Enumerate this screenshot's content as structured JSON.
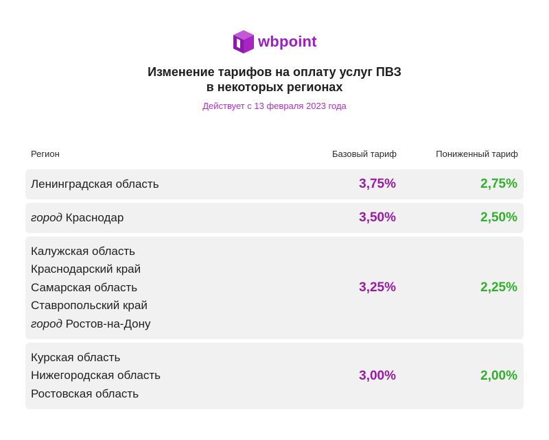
{
  "brand": {
    "name": "wbpoint",
    "color": "#9b1fbf"
  },
  "title_line1": "Изменение тарифов на оплату услуг ПВЗ",
  "title_line2": "в некоторых регионах",
  "subtitle": "Действует с 13 февраля 2023 года",
  "columns": {
    "region": "Регион",
    "base": "Базовый тариф",
    "reduced": "Пониженный тариф"
  },
  "colors": {
    "base_value": "#981da3",
    "reduced_value": "#2fb12a",
    "row_bg": "#f1f1f1"
  },
  "rows": [
    {
      "regions": [
        {
          "prefix": "",
          "name": "Ленинградская область"
        }
      ],
      "base": "3,75%",
      "reduced": "2,75%"
    },
    {
      "regions": [
        {
          "prefix": "город",
          "name": " Краснодар"
        }
      ],
      "base": "3,50%",
      "reduced": "2,50%"
    },
    {
      "regions": [
        {
          "prefix": "",
          "name": "Калужская область"
        },
        {
          "prefix": "",
          "name": "Краснодарский край"
        },
        {
          "prefix": "",
          "name": "Самарская область"
        },
        {
          "prefix": "",
          "name": "Ставропольский край"
        },
        {
          "prefix": "город",
          "name": " Ростов-на-Дону"
        }
      ],
      "base": "3,25%",
      "reduced": "2,25%"
    },
    {
      "regions": [
        {
          "prefix": "",
          "name": "Курская область"
        },
        {
          "prefix": "",
          "name": "Нижегородская область"
        },
        {
          "prefix": "",
          "name": "Ростовская область"
        }
      ],
      "base": "3,00%",
      "reduced": "2,00%"
    }
  ]
}
